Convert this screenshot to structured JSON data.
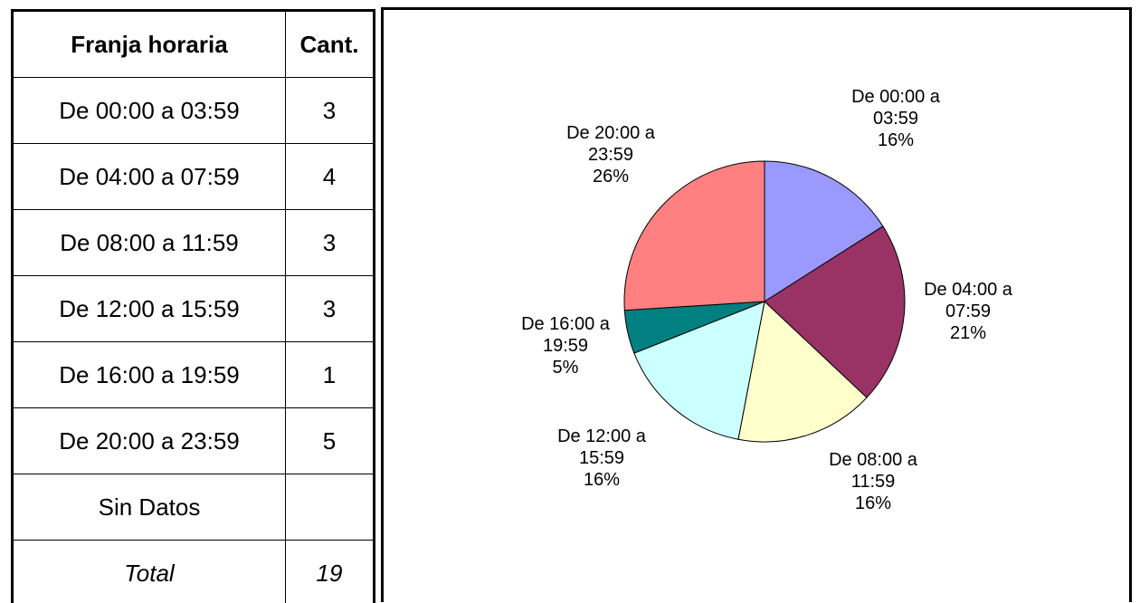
{
  "table": {
    "header": [
      "Franja horaria",
      "Cant."
    ],
    "rows": [
      [
        "De 00:00 a 03:59",
        3
      ],
      [
        "De 04:00 a 07:59",
        4
      ],
      [
        "De 08:00 a 11:59",
        3
      ],
      [
        "De 12:00 a 15:59",
        3
      ],
      [
        "De 16:00 a 19:59",
        1
      ],
      [
        "De 20:00 a 23:59",
        5
      ],
      [
        "Sin Datos"
      ]
    ],
    "total": [
      "Total",
      19
    ]
  },
  "chart_data": {
    "type": "pie",
    "categories": [
      "De 00:00 a 03:59",
      "De 04:00 a 07:59",
      "De 08:00 a 11:59",
      "De 12:00 a 15:59",
      "De 16:00 a 19:59",
      "De 20:00 a 23:59"
    ],
    "values": [
      16,
      21,
      16,
      16,
      5,
      26
    ],
    "value_labels": [
      "16%",
      "21%",
      "16%",
      "16%",
      "5%",
      "26%"
    ],
    "colors": [
      "#9999ff",
      "#993366",
      "#ffffcc",
      "#ccffff",
      "#008080",
      "#ff8080"
    ]
  }
}
